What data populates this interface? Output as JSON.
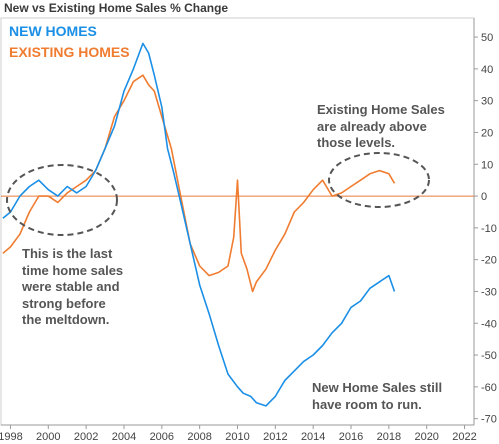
{
  "chart_data": {
    "type": "line",
    "title": "New vs Existing Home Sales % Change",
    "xlabel": "",
    "ylabel": "",
    "xlim": [
      1997.5,
      2022.5
    ],
    "ylim": [
      -72,
      56
    ],
    "x_ticks": [
      "1998",
      "2000",
      "2002",
      "2004",
      "2006",
      "2008",
      "2010",
      "2012",
      "2014",
      "2016",
      "2018",
      "2020",
      "2022"
    ],
    "y_ticks": [
      50,
      40,
      30,
      20,
      10,
      0,
      -10,
      -20,
      -30,
      -40,
      -50,
      -60,
      -70
    ],
    "y_axis_position": "right",
    "grid": false,
    "zero_line": true,
    "series": [
      {
        "name": "NEW HOMES",
        "color": "#1b8fe6",
        "x": [
          1997.6,
          1998.0,
          1998.5,
          1999.0,
          1999.5,
          2000.0,
          2000.5,
          2001.0,
          2001.5,
          2002.0,
          2002.5,
          2003.0,
          2003.5,
          2004.0,
          2004.5,
          2005.0,
          2005.3,
          2005.6,
          2006.0,
          2006.3,
          2006.6,
          2007.0,
          2007.5,
          2008.0,
          2008.5,
          2009.0,
          2009.5,
          2010.0,
          2010.3,
          2010.7,
          2011.0,
          2011.5,
          2012.0,
          2012.5,
          2013.0,
          2013.5,
          2014.0,
          2014.5,
          2015.0,
          2015.5,
          2016.0,
          2016.5,
          2017.0,
          2017.5,
          2018.0,
          2018.3
        ],
        "values": [
          -7,
          -5,
          0,
          3,
          5,
          2,
          0,
          3,
          1,
          3,
          8,
          15,
          22,
          33,
          40,
          48,
          45,
          38,
          28,
          15,
          8,
          -2,
          -15,
          -28,
          -37,
          -47,
          -56,
          -60,
          -62,
          -63,
          -65,
          -66,
          -63,
          -58,
          -55,
          -52,
          -50,
          -47,
          -43,
          -40,
          -35,
          -33,
          -29,
          -27,
          -25,
          -30
        ]
      },
      {
        "name": "EXISTING HOMES",
        "color": "#f07c30",
        "x": [
          1997.6,
          1998.0,
          1998.5,
          1999.0,
          1999.5,
          2000.0,
          2000.5,
          2001.0,
          2001.5,
          2002.0,
          2002.5,
          2003.0,
          2003.5,
          2004.0,
          2004.5,
          2005.0,
          2005.3,
          2005.6,
          2006.0,
          2006.5,
          2007.0,
          2007.5,
          2008.0,
          2008.5,
          2009.0,
          2009.5,
          2009.8,
          2010.0,
          2010.2,
          2010.5,
          2010.8,
          2011.0,
          2011.5,
          2012.0,
          2012.5,
          2013.0,
          2013.5,
          2014.0,
          2014.5,
          2015.0,
          2015.5,
          2016.0,
          2016.5,
          2017.0,
          2017.5,
          2018.0,
          2018.3
        ],
        "values": [
          -18,
          -16,
          -12,
          -5,
          0,
          0,
          -2,
          1,
          3,
          5,
          8,
          15,
          25,
          30,
          36,
          38,
          35,
          33,
          25,
          15,
          0,
          -15,
          -22,
          -25,
          -24,
          -22,
          -13,
          5,
          -18,
          -23,
          -30,
          -27,
          -23,
          -17,
          -12,
          -5,
          -2,
          2,
          5,
          0,
          1,
          3,
          5,
          7,
          8,
          7,
          4
        ]
      }
    ],
    "annotations": [
      "This is the last time home sales were stable and strong before the meltdown.",
      "Existing Home Sales are already above those levels.",
      "New Home Sales still have room to run."
    ]
  },
  "legend": {
    "new": "NEW HOMES",
    "existing": "EXISTING HOMES"
  },
  "notes": {
    "left": [
      "This is the last",
      "time home sales",
      "were stable and",
      "strong before",
      "the meltdown."
    ],
    "right_top": [
      "Existing Home Sales",
      "are already above",
      "those levels."
    ],
    "right_bottom": [
      "New Home Sales still",
      "have room to run."
    ]
  },
  "colors": {
    "new": "#1b8fe6",
    "existing": "#f07c30",
    "zero_line": "#e87a3a",
    "ellipse": "#555555",
    "note_text": "#555555"
  }
}
